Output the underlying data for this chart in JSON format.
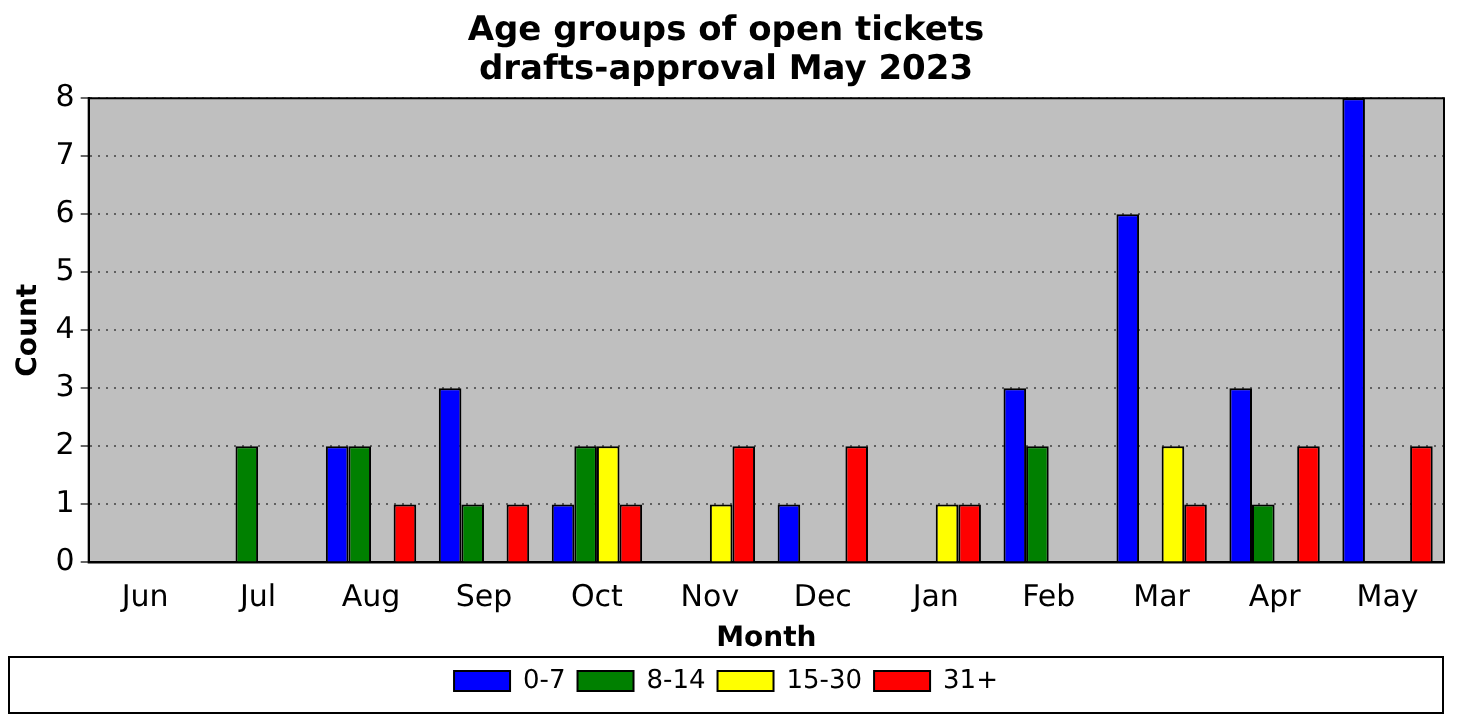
{
  "chart_data": {
    "type": "bar",
    "title": "Age groups of open tickets\ndrafts-approval May 2023",
    "xlabel": "Month",
    "ylabel": "Count",
    "categories": [
      "Jun",
      "Jul",
      "Aug",
      "Sep",
      "Oct",
      "Nov",
      "Dec",
      "Jan",
      "Feb",
      "Mar",
      "Apr",
      "May"
    ],
    "series": [
      {
        "name": "0-7",
        "color": "#0000ff",
        "values": [
          0,
          0,
          2,
          3,
          1,
          0,
          1,
          0,
          3,
          6,
          3,
          8
        ]
      },
      {
        "name": "8-14",
        "color": "#008000",
        "values": [
          0,
          2,
          2,
          1,
          2,
          0,
          0,
          0,
          2,
          0,
          1,
          0
        ]
      },
      {
        "name": "15-30",
        "color": "#ffff00",
        "values": [
          0,
          0,
          0,
          0,
          2,
          1,
          0,
          1,
          0,
          2,
          0,
          0
        ]
      },
      {
        "name": "31+",
        "color": "#ff0000",
        "values": [
          0,
          0,
          1,
          1,
          1,
          2,
          2,
          1,
          0,
          1,
          2,
          2
        ]
      }
    ],
    "ylim": [
      0,
      8
    ],
    "yticks": [
      0,
      1,
      2,
      3,
      4,
      5,
      6,
      7,
      8
    ],
    "grid": "y",
    "legend": "bottom"
  }
}
